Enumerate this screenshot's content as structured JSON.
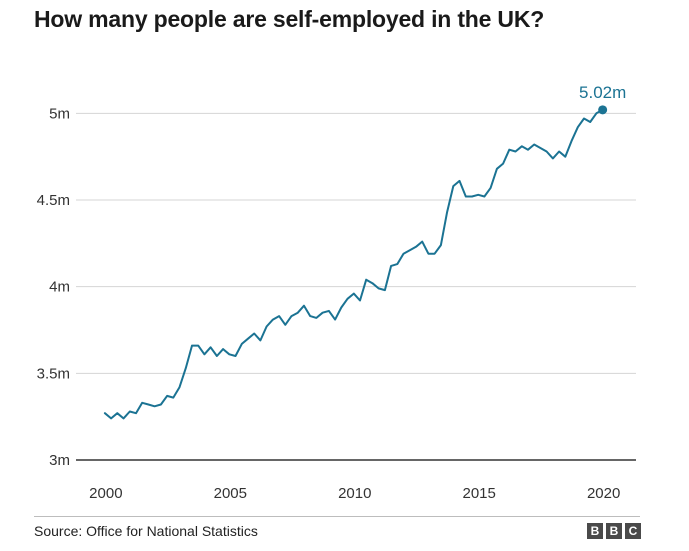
{
  "chart_data": {
    "type": "line",
    "title": "How many people are self-employed in the UK?",
    "xlabel": "",
    "ylabel": "",
    "xlim": [
      1998.8,
      2021.3
    ],
    "ylim": [
      3.0,
      5.25
    ],
    "x_ticks": [
      2000,
      2005,
      2010,
      2015,
      2020
    ],
    "x_tick_labels": [
      "2000",
      "2005",
      "2010",
      "2015",
      "2020"
    ],
    "y_ticks": [
      3.0,
      3.5,
      4.0,
      4.5,
      5.0
    ],
    "y_tick_labels": [
      "3m",
      "3.5m",
      "4m",
      "4.5m",
      "5m"
    ],
    "grid": true,
    "units": "millions",
    "series": [
      {
        "color": "#1b7393",
        "x": [
          1999.96,
          2000.21,
          2000.46,
          2000.71,
          2000.96,
          2001.21,
          2001.46,
          2001.71,
          2001.96,
          2002.21,
          2002.46,
          2002.71,
          2002.96,
          2003.21,
          2003.46,
          2003.71,
          2003.96,
          2004.21,
          2004.46,
          2004.71,
          2004.96,
          2005.21,
          2005.46,
          2005.71,
          2005.96,
          2006.21,
          2006.46,
          2006.71,
          2006.96,
          2007.21,
          2007.46,
          2007.71,
          2007.96,
          2008.21,
          2008.46,
          2008.71,
          2008.96,
          2009.21,
          2009.46,
          2009.71,
          2009.96,
          2010.21,
          2010.46,
          2010.71,
          2010.96,
          2011.21,
          2011.46,
          2011.71,
          2011.96,
          2012.21,
          2012.46,
          2012.71,
          2012.96,
          2013.21,
          2013.46,
          2013.71,
          2013.96,
          2014.21,
          2014.46,
          2014.71,
          2014.96,
          2015.21,
          2015.46,
          2015.71,
          2015.96,
          2016.21,
          2016.46,
          2016.71,
          2016.96,
          2017.21,
          2017.46,
          2017.71,
          2017.96,
          2018.21,
          2018.46,
          2018.71,
          2018.96,
          2019.21,
          2019.46,
          2019.71,
          2019.96
        ],
        "values": [
          3.27,
          3.24,
          3.27,
          3.24,
          3.28,
          3.27,
          3.33,
          3.32,
          3.31,
          3.32,
          3.37,
          3.36,
          3.42,
          3.53,
          3.66,
          3.66,
          3.61,
          3.65,
          3.6,
          3.64,
          3.61,
          3.6,
          3.67,
          3.7,
          3.73,
          3.69,
          3.77,
          3.81,
          3.83,
          3.78,
          3.83,
          3.85,
          3.89,
          3.83,
          3.82,
          3.85,
          3.86,
          3.81,
          3.88,
          3.93,
          3.96,
          3.92,
          4.04,
          4.02,
          3.99,
          3.98,
          4.12,
          4.13,
          4.19,
          4.21,
          4.23,
          4.26,
          4.19,
          4.19,
          4.24,
          4.43,
          4.58,
          4.61,
          4.52,
          4.52,
          4.53,
          4.52,
          4.57,
          4.68,
          4.71,
          4.79,
          4.78,
          4.81,
          4.79,
          4.82,
          4.8,
          4.78,
          4.74,
          4.78,
          4.75,
          4.84,
          4.92,
          4.97,
          4.95,
          5.0,
          5.02
        ]
      }
    ],
    "annotation": {
      "label": "5.02m",
      "x": 2019.96,
      "y": 5.02,
      "color": "#1b7393"
    }
  },
  "footer": {
    "source": "Source: Office for National Statistics",
    "logo_letters": [
      "B",
      "B",
      "C"
    ]
  }
}
